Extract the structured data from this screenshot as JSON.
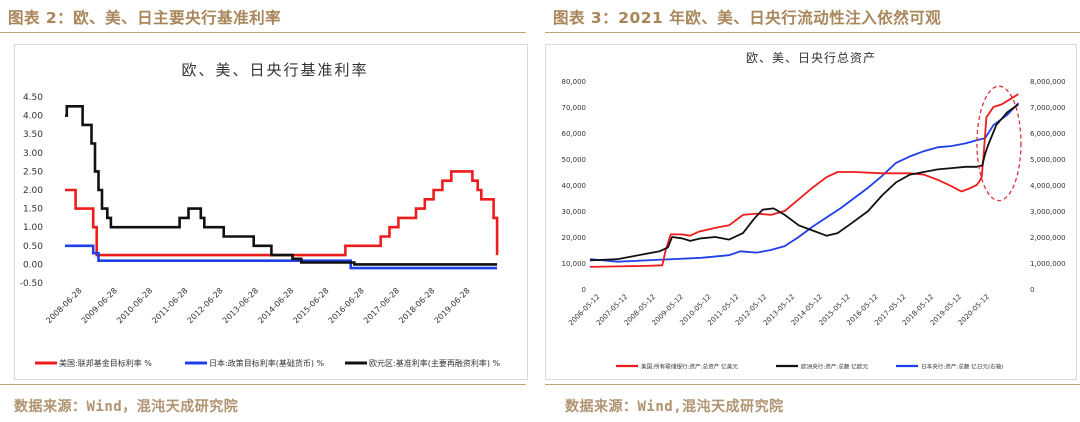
{
  "left": {
    "figure_title": "图表 2：欧、美、日主要央行基准利率",
    "source": "数据来源：Wind，混沌天成研究院"
  },
  "right": {
    "figure_title": "图表 3：2021 年欧、美、日央行流动性注入依然可观",
    "source": "数据来源：Wind,混沌天成研究院"
  },
  "colors": {
    "us": "#ee1c1c",
    "eu": "#111111",
    "jp": "#1f3fe8",
    "accent": "#b09370",
    "circle": "#d9303c"
  },
  "chart_data": [
    {
      "type": "line",
      "title": "欧、美、日央行基准利率",
      "categories": [
        "2008-06-28",
        "2009-06-28",
        "2010-06-28",
        "2011-06-28",
        "2012-06-28",
        "2013-06-28",
        "2014-06-28",
        "2015-06-28",
        "2016-06-28",
        "2017-06-28",
        "2018-06-28",
        "2019-06-28"
      ],
      "yticks": [
        "4.50",
        "4.00",
        "3.50",
        "3.00",
        "2.50",
        "2.00",
        "1.50",
        "1.00",
        "0.50",
        "0.00",
        "-0.50"
      ],
      "ylim": [
        -0.5,
        4.5
      ],
      "xlim": [
        2008.0,
        2020.7
      ],
      "grid": false,
      "legend_position": "bottom",
      "series": [
        {
          "name": "美国:联邦基金目标利率 %",
          "color_key": "us",
          "x": [
            2008.0,
            2008.3,
            2008.3,
            2008.8,
            2008.8,
            2008.9,
            2008.9,
            2009.0,
            2009.0,
            2015.95,
            2015.95,
            2016.95,
            2016.95,
            2017.2,
            2017.2,
            2017.45,
            2017.45,
            2017.95,
            2017.95,
            2018.2,
            2018.2,
            2018.45,
            2018.45,
            2018.7,
            2018.7,
            2018.95,
            2018.95,
            2019.55,
            2019.55,
            2019.7,
            2019.7,
            2019.8,
            2019.8,
            2020.15,
            2020.15,
            2020.25,
            2020.25
          ],
          "y": [
            2.0,
            2.0,
            1.5,
            1.5,
            1.0,
            1.0,
            0.25,
            0.25,
            0.25,
            0.25,
            0.5,
            0.5,
            0.75,
            0.75,
            1.0,
            1.0,
            1.25,
            1.25,
            1.5,
            1.5,
            1.75,
            1.75,
            2.0,
            2.0,
            2.25,
            2.25,
            2.5,
            2.5,
            2.25,
            2.25,
            2.0,
            2.0,
            1.75,
            1.75,
            1.25,
            1.25,
            0.25
          ]
        },
        {
          "name": "日本:政策目标利率(基础货币) %",
          "color_key": "jp",
          "x": [
            2008.0,
            2008.8,
            2008.8,
            2008.95,
            2008.95,
            2016.1,
            2016.1,
            2020.25
          ],
          "y": [
            0.5,
            0.5,
            0.3,
            0.3,
            0.1,
            0.1,
            -0.1,
            -0.1
          ]
        },
        {
          "name": "欧元区:基准利率(主要再融资利率) %",
          "color_key": "eu",
          "x": [
            2008.0,
            2008.05,
            2008.05,
            2008.5,
            2008.5,
            2008.75,
            2008.75,
            2008.85,
            2008.85,
            2008.95,
            2008.95,
            2009.05,
            2009.05,
            2009.2,
            2009.2,
            2009.3,
            2009.3,
            2009.4,
            2009.4,
            2011.25,
            2011.25,
            2011.5,
            2011.5,
            2011.85,
            2011.85,
            2011.95,
            2011.95,
            2012.5,
            2012.5,
            2013.35,
            2013.35,
            2013.85,
            2013.85,
            2014.45,
            2014.45,
            2014.7,
            2014.7,
            2016.2,
            2016.2,
            2020.25
          ],
          "y": [
            4.0,
            4.0,
            4.25,
            4.25,
            3.75,
            3.75,
            3.25,
            3.25,
            2.5,
            2.5,
            2.0,
            2.0,
            1.5,
            1.5,
            1.25,
            1.25,
            1.0,
            1.0,
            1.0,
            1.0,
            1.25,
            1.25,
            1.5,
            1.5,
            1.25,
            1.25,
            1.0,
            1.0,
            0.75,
            0.75,
            0.5,
            0.5,
            0.25,
            0.25,
            0.15,
            0.15,
            0.05,
            0.05,
            0.0,
            0.0
          ]
        }
      ]
    },
    {
      "type": "line",
      "title": "欧、美、日央行总资产",
      "categories": [
        "2006-05-12",
        "2007-05-12",
        "2008-05-12",
        "2009-05-12",
        "2010-05-12",
        "2011-05-12",
        "2012-05-12",
        "2013-05-12",
        "2014-05-12",
        "2015-05-12",
        "2016-05-12",
        "2017-05-12",
        "2018-05-12",
        "2019-05-12",
        "2020-05-12"
      ],
      "yticks_left": [
        "80,000",
        "70,000",
        "60,000",
        "50,000",
        "40,000",
        "30,000",
        "20,000",
        "10,000",
        "0"
      ],
      "ylim_left": [
        0,
        80000
      ],
      "yticks_right": [
        "8,000,000",
        "7,000,000",
        "6,000,000",
        "5,000,000",
        "4,000,000",
        "3,000,000",
        "2,000,000",
        "1,000,000",
        "0"
      ],
      "ylim_right": [
        0,
        8000000
      ],
      "xlim": [
        2006.0,
        2021.6
      ],
      "grid": false,
      "legend_position": "bottom",
      "series": [
        {
          "name": "美国:所有联储银行:资产:总资产 亿美元",
          "color_key": "us",
          "axis": "left",
          "x": [
            2006.0,
            2007.0,
            2008.0,
            2008.6,
            2008.72,
            2008.9,
            2009.3,
            2009.6,
            2009.9,
            2010.5,
            2011.0,
            2011.5,
            2012.0,
            2012.5,
            2013.0,
            2013.5,
            2014.0,
            2014.5,
            2014.9,
            2015.5,
            2016.5,
            2017.5,
            2018.0,
            2018.5,
            2019.0,
            2019.35,
            2019.6,
            2019.9,
            2020.0,
            2020.08,
            2020.15,
            2020.25,
            2020.5,
            2020.8,
            2021.1,
            2021.4
          ],
          "y": [
            8500,
            8700,
            8900,
            9100,
            15000,
            21000,
            21000,
            20500,
            22000,
            23500,
            24500,
            28500,
            29000,
            28500,
            30000,
            34500,
            39000,
            43000,
            45000,
            45000,
            44500,
            44500,
            44000,
            42000,
            39500,
            37500,
            38500,
            40000,
            41500,
            43000,
            52000,
            66000,
            70000,
            71000,
            73000,
            75000
          ]
        },
        {
          "name": "欧洲央行:资产:总额 亿欧元",
          "color_key": "eu",
          "axis": "left",
          "x": [
            2006.0,
            2007.0,
            2007.5,
            2008.0,
            2008.5,
            2008.8,
            2008.95,
            2009.3,
            2009.6,
            2010.0,
            2010.5,
            2011.0,
            2011.5,
            2011.9,
            2012.2,
            2012.6,
            2013.0,
            2013.5,
            2014.0,
            2014.5,
            2014.9,
            2015.3,
            2016.0,
            2016.5,
            2017.0,
            2017.5,
            2018.0,
            2018.5,
            2019.0,
            2019.5,
            2019.9,
            2020.1,
            2020.2,
            2020.3,
            2020.6,
            2021.0,
            2021.4
          ],
          "y": [
            11000,
            11500,
            12500,
            13500,
            14500,
            16000,
            20000,
            19500,
            18500,
            19500,
            20000,
            19000,
            21500,
            27000,
            30500,
            31000,
            28500,
            24500,
            22500,
            20500,
            21500,
            24500,
            30000,
            36000,
            41000,
            44000,
            45000,
            46000,
            46500,
            47000,
            47000,
            47500,
            52000,
            55000,
            63000,
            68000,
            71000
          ]
        },
        {
          "name": "日本央行:资产:总额 亿日元(右轴)",
          "color_key": "jp",
          "axis": "right",
          "x": [
            2006.0,
            2007.0,
            2008.0,
            2009.0,
            2010.0,
            2011.0,
            2011.4,
            2012.0,
            2012.5,
            2013.0,
            2013.5,
            2014.0,
            2014.5,
            2015.0,
            2015.5,
            2016.0,
            2016.5,
            2017.0,
            2017.5,
            2018.0,
            2018.5,
            2019.0,
            2019.5,
            2020.0,
            2020.2,
            2020.5,
            2021.0,
            2021.4
          ],
          "y": [
            1150000,
            1050000,
            1100000,
            1150000,
            1200000,
            1300000,
            1450000,
            1400000,
            1500000,
            1650000,
            2000000,
            2400000,
            2750000,
            3100000,
            3500000,
            3900000,
            4350000,
            4850000,
            5100000,
            5300000,
            5450000,
            5500000,
            5600000,
            5750000,
            5800000,
            6300000,
            6700000,
            7150000
          ]
        }
      ],
      "annotation": "dashed ellipse highlighting 2020-2021"
    }
  ]
}
